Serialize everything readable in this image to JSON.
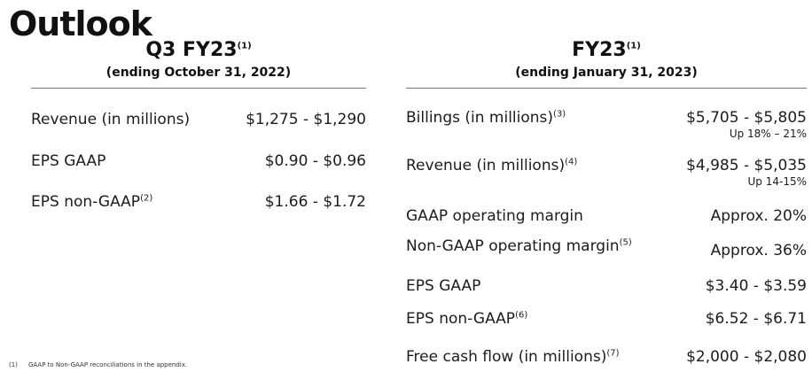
{
  "title": "Outlook",
  "q3": {
    "heading": "Q3 FY23",
    "heading_sup": "(1)",
    "subheading": "(ending October 31, 2022)",
    "rows": [
      {
        "label": "Revenue (in millions)",
        "label_sup": "",
        "value": "$1,275 - $1,290"
      },
      {
        "label": "EPS GAAP",
        "label_sup": "",
        "value": "$0.90 - $0.96"
      },
      {
        "label": "EPS non-GAAP",
        "label_sup": "(2)",
        "value": "$1.66 - $1.72"
      }
    ]
  },
  "fy": {
    "heading": "FY23",
    "heading_sup": "(1)",
    "subheading": "(ending January 31, 2023)",
    "rows": [
      {
        "label": "Billings (in millions)",
        "label_sup": "(3)",
        "value": "$5,705 - $5,805",
        "note": "Up 18% – 21%"
      },
      {
        "label": "Revenue (in millions)",
        "label_sup": "(4)",
        "value": "$4,985 - $5,035",
        "note": "Up 14-15%"
      },
      {
        "label": "GAAP operating margin",
        "label_sup": "",
        "value": "Approx. 20%"
      },
      {
        "label": "Non-GAAP operating margin",
        "label_sup": "(5)",
        "value": "Approx. 36%"
      },
      {
        "label": "EPS GAAP",
        "label_sup": "",
        "value": "$3.40 - $3.59"
      },
      {
        "label": "EPS non-GAAP",
        "label_sup": "(6)",
        "value": "$6.52 - $6.71"
      },
      {
        "label": "Free cash flow (in millions)",
        "label_sup": "(7)",
        "value": "$2,000 - $2,080"
      }
    ]
  },
  "footnote": {
    "number": "(1)",
    "text": "GAAP to Non-GAAP reconciliations in the appendix."
  }
}
